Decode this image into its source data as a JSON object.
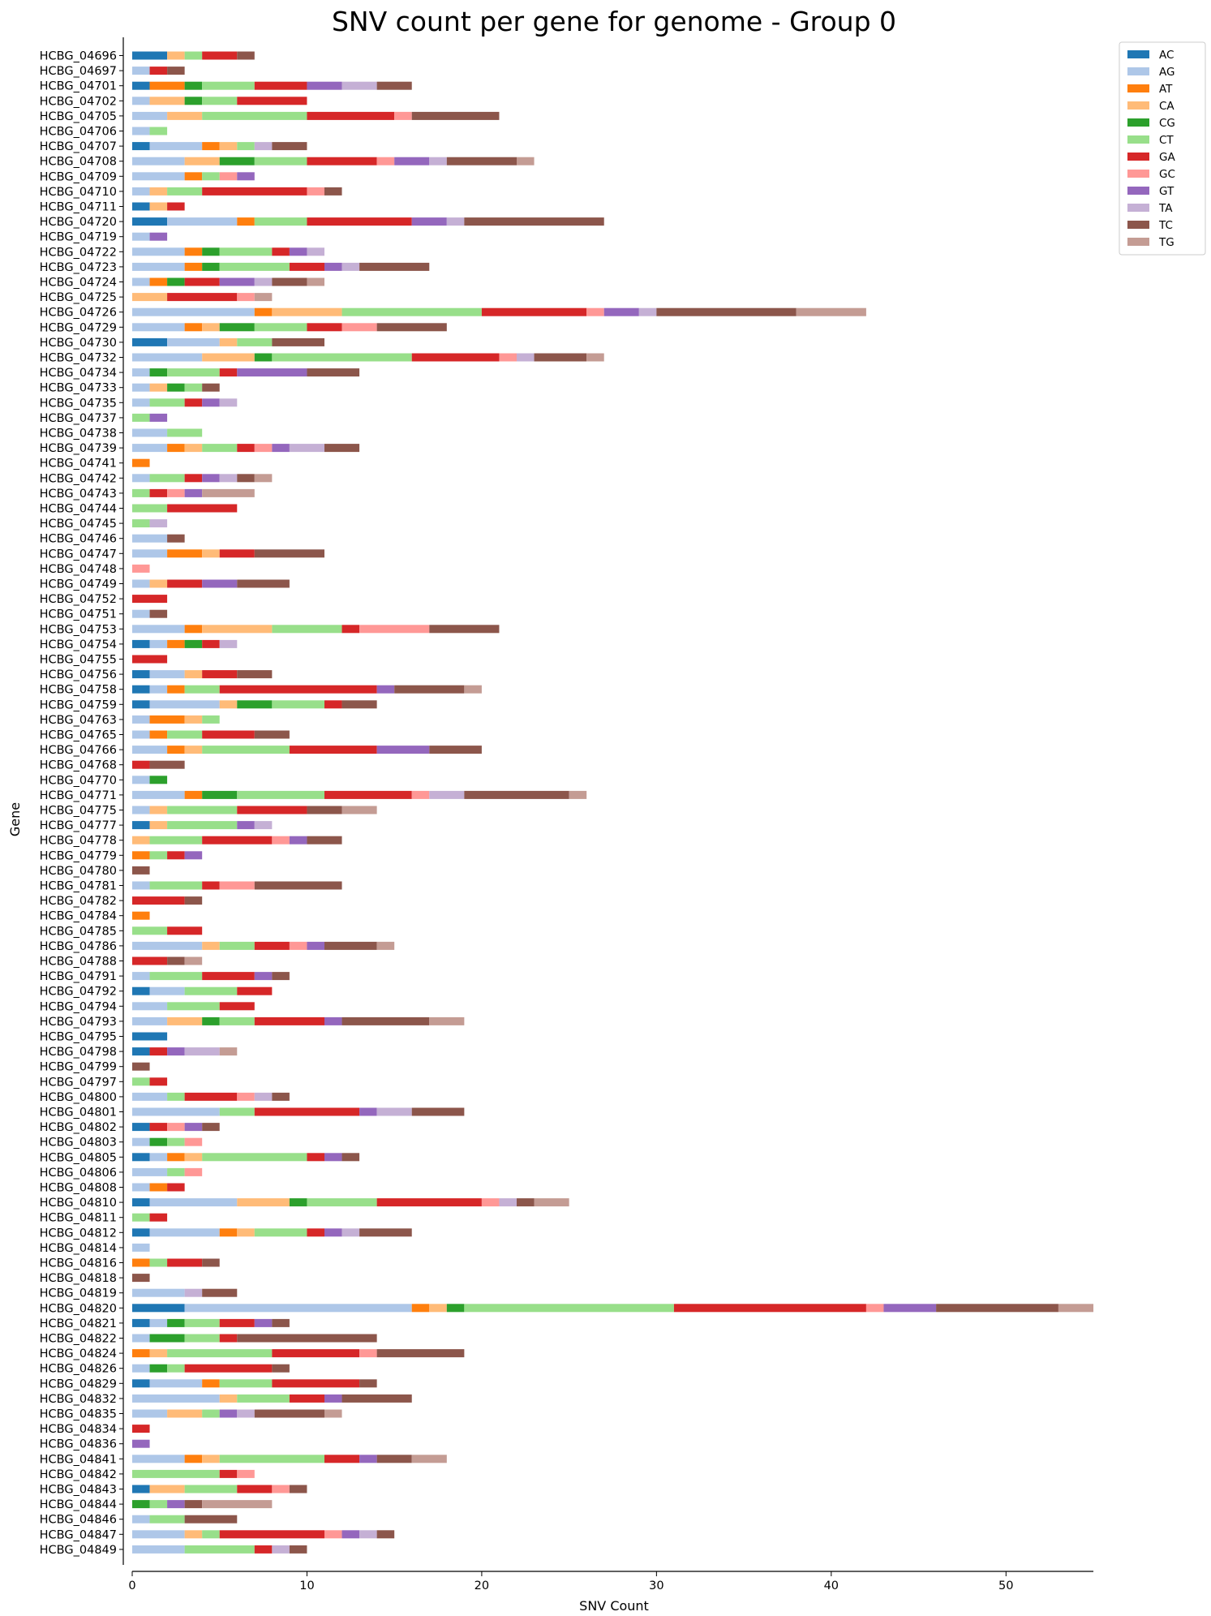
{
  "chart_data": {
    "type": "bar",
    "orientation": "horizontal",
    "stacked": true,
    "title": "SNV count per gene for genome - Group 0",
    "xlabel": "SNV Count",
    "ylabel": "Gene",
    "xlim": [
      0,
      55
    ],
    "xticks": [
      0,
      10,
      20,
      30,
      40,
      50
    ],
    "legend_position": "top-right",
    "categories": [
      "HCBG_04696",
      "HCBG_04697",
      "HCBG_04701",
      "HCBG_04702",
      "HCBG_04705",
      "HCBG_04706",
      "HCBG_04707",
      "HCBG_04708",
      "HCBG_04709",
      "HCBG_04710",
      "HCBG_04711",
      "HCBG_04720",
      "HCBG_04719",
      "HCBG_04722",
      "HCBG_04723",
      "HCBG_04724",
      "HCBG_04725",
      "HCBG_04726",
      "HCBG_04729",
      "HCBG_04730",
      "HCBG_04732",
      "HCBG_04734",
      "HCBG_04733",
      "HCBG_04735",
      "HCBG_04737",
      "HCBG_04738",
      "HCBG_04739",
      "HCBG_04741",
      "HCBG_04742",
      "HCBG_04743",
      "HCBG_04744",
      "HCBG_04745",
      "HCBG_04746",
      "HCBG_04747",
      "HCBG_04748",
      "HCBG_04749",
      "HCBG_04752",
      "HCBG_04751",
      "HCBG_04753",
      "HCBG_04754",
      "HCBG_04755",
      "HCBG_04756",
      "HCBG_04758",
      "HCBG_04759",
      "HCBG_04763",
      "HCBG_04765",
      "HCBG_04766",
      "HCBG_04768",
      "HCBG_04770",
      "HCBG_04771",
      "HCBG_04775",
      "HCBG_04777",
      "HCBG_04778",
      "HCBG_04779",
      "HCBG_04780",
      "HCBG_04781",
      "HCBG_04782",
      "HCBG_04784",
      "HCBG_04785",
      "HCBG_04786",
      "HCBG_04788",
      "HCBG_04791",
      "HCBG_04792",
      "HCBG_04794",
      "HCBG_04793",
      "HCBG_04795",
      "HCBG_04798",
      "HCBG_04799",
      "HCBG_04797",
      "HCBG_04800",
      "HCBG_04801",
      "HCBG_04802",
      "HCBG_04803",
      "HCBG_04805",
      "HCBG_04806",
      "HCBG_04808",
      "HCBG_04810",
      "HCBG_04811",
      "HCBG_04812",
      "HCBG_04814",
      "HCBG_04816",
      "HCBG_04818",
      "HCBG_04819",
      "HCBG_04820",
      "HCBG_04821",
      "HCBG_04822",
      "HCBG_04824",
      "HCBG_04826",
      "HCBG_04829",
      "HCBG_04832",
      "HCBG_04835",
      "HCBG_04834",
      "HCBG_04836",
      "HCBG_04841",
      "HCBG_04842",
      "HCBG_04843",
      "HCBG_04844",
      "HCBG_04846",
      "HCBG_04847",
      "HCBG_04849"
    ],
    "series": [
      {
        "name": "AC",
        "color": "#1f77b4",
        "values": [
          2,
          0,
          1,
          0,
          0,
          0,
          1,
          0,
          0,
          0,
          1,
          2,
          0,
          0,
          0,
          0,
          0,
          0,
          0,
          2,
          0,
          0,
          0,
          0,
          0,
          0,
          0,
          0,
          0,
          0,
          0,
          0,
          0,
          0,
          0,
          0,
          0,
          0,
          0,
          1,
          0,
          1,
          1,
          1,
          0,
          0,
          0,
          0,
          0,
          0,
          0,
          1,
          0,
          0,
          0,
          0,
          0,
          0,
          0,
          0,
          0,
          0,
          1,
          0,
          0,
          2,
          1,
          0,
          0,
          0,
          0,
          1,
          0,
          1,
          0,
          0,
          1,
          0,
          1,
          0,
          0,
          0,
          0,
          3,
          1,
          0,
          0,
          0,
          1,
          0,
          0,
          0,
          0,
          0,
          0,
          1,
          0,
          0,
          0,
          0
        ]
      },
      {
        "name": "AG",
        "color": "#aec7e8",
        "values": [
          0,
          1,
          0,
          1,
          2,
          1,
          3,
          3,
          3,
          1,
          0,
          4,
          1,
          3,
          3,
          1,
          0,
          7,
          3,
          3,
          4,
          1,
          1,
          1,
          0,
          2,
          2,
          0,
          1,
          0,
          0,
          0,
          2,
          2,
          0,
          1,
          0,
          1,
          3,
          1,
          0,
          2,
          1,
          4,
          1,
          1,
          2,
          0,
          1,
          3,
          1,
          0,
          0,
          0,
          0,
          1,
          0,
          0,
          0,
          4,
          0,
          1,
          2,
          2,
          2,
          0,
          0,
          0,
          0,
          2,
          5,
          0,
          1,
          1,
          2,
          1,
          5,
          0,
          4,
          1,
          0,
          0,
          3,
          13,
          1,
          1,
          0,
          1,
          3,
          5,
          2,
          0,
          0,
          3,
          0,
          0,
          0,
          1,
          3,
          3
        ]
      },
      {
        "name": "AT",
        "color": "#ff7f0e",
        "values": [
          0,
          0,
          2,
          0,
          0,
          0,
          1,
          0,
          1,
          0,
          0,
          1,
          0,
          1,
          1,
          1,
          0,
          1,
          1,
          0,
          0,
          0,
          0,
          0,
          0,
          0,
          1,
          1,
          0,
          0,
          0,
          0,
          0,
          2,
          0,
          0,
          0,
          0,
          1,
          1,
          0,
          0,
          1,
          0,
          2,
          1,
          1,
          0,
          0,
          1,
          0,
          0,
          0,
          1,
          0,
          0,
          0,
          1,
          0,
          0,
          0,
          0,
          0,
          0,
          0,
          0,
          0,
          0,
          0,
          0,
          0,
          0,
          0,
          1,
          0,
          1,
          0,
          0,
          1,
          0,
          1,
          0,
          0,
          1,
          0,
          0,
          1,
          0,
          1,
          0,
          0,
          0,
          0,
          1,
          0,
          0,
          0,
          0,
          0,
          0
        ]
      },
      {
        "name": "CA",
        "color": "#ffbb78",
        "values": [
          1,
          0,
          0,
          2,
          2,
          0,
          1,
          2,
          0,
          1,
          1,
          0,
          0,
          0,
          0,
          0,
          2,
          4,
          1,
          1,
          3,
          0,
          1,
          0,
          0,
          0,
          1,
          0,
          0,
          0,
          0,
          0,
          0,
          1,
          0,
          1,
          0,
          0,
          4,
          0,
          0,
          1,
          0,
          1,
          1,
          0,
          1,
          0,
          0,
          0,
          1,
          1,
          1,
          0,
          0,
          0,
          0,
          0,
          0,
          1,
          0,
          0,
          0,
          0,
          2,
          0,
          0,
          0,
          0,
          0,
          0,
          0,
          0,
          1,
          0,
          0,
          3,
          0,
          1,
          0,
          0,
          0,
          0,
          1,
          0,
          0,
          1,
          0,
          0,
          1,
          2,
          0,
          0,
          1,
          0,
          2,
          0,
          0,
          1,
          0
        ]
      },
      {
        "name": "CG",
        "color": "#2ca02c",
        "values": [
          0,
          0,
          1,
          1,
          0,
          0,
          0,
          2,
          0,
          0,
          0,
          0,
          0,
          1,
          1,
          1,
          0,
          0,
          2,
          0,
          1,
          1,
          1,
          0,
          0,
          0,
          0,
          0,
          0,
          0,
          0,
          0,
          0,
          0,
          0,
          0,
          0,
          0,
          0,
          1,
          0,
          0,
          0,
          2,
          0,
          0,
          0,
          0,
          1,
          2,
          0,
          0,
          0,
          0,
          0,
          0,
          0,
          0,
          0,
          0,
          0,
          0,
          0,
          0,
          1,
          0,
          0,
          0,
          0,
          0,
          0,
          0,
          1,
          0,
          0,
          0,
          1,
          0,
          0,
          0,
          0,
          0,
          0,
          1,
          1,
          2,
          0,
          1,
          0,
          0,
          0,
          0,
          0,
          0,
          0,
          0,
          1,
          0,
          0,
          0
        ]
      },
      {
        "name": "CT",
        "color": "#98df8a",
        "values": [
          1,
          0,
          3,
          2,
          6,
          1,
          1,
          3,
          1,
          2,
          0,
          3,
          0,
          3,
          4,
          0,
          0,
          8,
          3,
          2,
          8,
          3,
          1,
          2,
          1,
          2,
          2,
          0,
          2,
          1,
          2,
          1,
          0,
          0,
          0,
          0,
          0,
          0,
          4,
          0,
          0,
          0,
          2,
          3,
          1,
          2,
          5,
          0,
          0,
          5,
          4,
          4,
          3,
          1,
          0,
          3,
          0,
          0,
          2,
          2,
          0,
          3,
          3,
          3,
          2,
          0,
          0,
          0,
          1,
          1,
          2,
          0,
          1,
          6,
          1,
          0,
          4,
          1,
          3,
          0,
          1,
          0,
          0,
          12,
          2,
          2,
          6,
          1,
          3,
          3,
          1,
          0,
          0,
          6,
          5,
          3,
          1,
          2,
          1,
          4
        ]
      },
      {
        "name": "GA",
        "color": "#d62728",
        "values": [
          2,
          1,
          3,
          4,
          5,
          0,
          0,
          4,
          0,
          6,
          1,
          6,
          0,
          1,
          2,
          2,
          4,
          6,
          2,
          0,
          5,
          1,
          0,
          1,
          0,
          0,
          1,
          0,
          1,
          1,
          4,
          0,
          0,
          2,
          0,
          2,
          2,
          0,
          1,
          1,
          2,
          2,
          9,
          1,
          0,
          3,
          5,
          1,
          0,
          5,
          4,
          0,
          4,
          1,
          0,
          1,
          3,
          0,
          2,
          2,
          2,
          3,
          2,
          2,
          4,
          0,
          1,
          0,
          1,
          3,
          6,
          1,
          0,
          1,
          0,
          1,
          6,
          1,
          1,
          0,
          2,
          0,
          0,
          11,
          2,
          1,
          5,
          5,
          5,
          2,
          0,
          1,
          0,
          2,
          1,
          2,
          0,
          0,
          6,
          1
        ]
      },
      {
        "name": "GC",
        "color": "#ff9896",
        "values": [
          0,
          0,
          0,
          0,
          1,
          0,
          0,
          1,
          1,
          1,
          0,
          0,
          0,
          0,
          0,
          0,
          1,
          1,
          2,
          0,
          1,
          0,
          0,
          0,
          0,
          0,
          1,
          0,
          0,
          1,
          0,
          0,
          0,
          0,
          1,
          0,
          0,
          0,
          4,
          0,
          0,
          0,
          0,
          0,
          0,
          0,
          0,
          0,
          0,
          1,
          0,
          0,
          1,
          0,
          0,
          2,
          0,
          0,
          0,
          1,
          0,
          0,
          0,
          0,
          0,
          0,
          0,
          0,
          0,
          1,
          0,
          1,
          1,
          0,
          1,
          0,
          1,
          0,
          0,
          0,
          0,
          0,
          0,
          1,
          0,
          0,
          1,
          0,
          0,
          0,
          0,
          0,
          0,
          0,
          1,
          1,
          0,
          0,
          1,
          0
        ]
      },
      {
        "name": "GT",
        "color": "#9467bd",
        "values": [
          0,
          0,
          2,
          0,
          0,
          0,
          0,
          2,
          1,
          0,
          0,
          2,
          1,
          1,
          1,
          2,
          0,
          2,
          0,
          0,
          0,
          4,
          0,
          1,
          1,
          0,
          1,
          0,
          1,
          1,
          0,
          0,
          0,
          0,
          0,
          2,
          0,
          0,
          0,
          0,
          0,
          0,
          1,
          0,
          0,
          0,
          3,
          0,
          0,
          0,
          0,
          1,
          1,
          1,
          0,
          0,
          0,
          0,
          0,
          1,
          0,
          1,
          0,
          0,
          1,
          0,
          1,
          0,
          0,
          0,
          1,
          1,
          0,
          1,
          0,
          0,
          0,
          0,
          1,
          0,
          0,
          0,
          0,
          3,
          1,
          0,
          0,
          0,
          0,
          1,
          1,
          0,
          1,
          1,
          0,
          0,
          1,
          0,
          1,
          0
        ]
      },
      {
        "name": "TA",
        "color": "#c5b0d5",
        "values": [
          0,
          0,
          2,
          0,
          0,
          0,
          1,
          1,
          0,
          0,
          0,
          1,
          0,
          1,
          1,
          1,
          0,
          1,
          0,
          0,
          1,
          0,
          0,
          1,
          0,
          0,
          2,
          0,
          1,
          0,
          0,
          1,
          0,
          0,
          0,
          0,
          0,
          0,
          0,
          1,
          0,
          0,
          0,
          0,
          0,
          0,
          0,
          0,
          0,
          2,
          0,
          1,
          0,
          0,
          0,
          0,
          0,
          0,
          0,
          0,
          0,
          0,
          0,
          0,
          0,
          0,
          2,
          0,
          0,
          1,
          2,
          0,
          0,
          0,
          0,
          0,
          1,
          0,
          1,
          0,
          0,
          0,
          1,
          0,
          0,
          0,
          0,
          0,
          0,
          0,
          1,
          0,
          0,
          0,
          0,
          0,
          0,
          0,
          1,
          1
        ]
      },
      {
        "name": "TC",
        "color": "#8c564b",
        "values": [
          1,
          1,
          2,
          0,
          5,
          0,
          2,
          4,
          0,
          1,
          0,
          8,
          0,
          0,
          4,
          2,
          0,
          8,
          4,
          3,
          3,
          3,
          1,
          0,
          0,
          0,
          2,
          0,
          1,
          0,
          0,
          0,
          1,
          4,
          0,
          3,
          0,
          1,
          4,
          0,
          0,
          2,
          4,
          2,
          0,
          2,
          3,
          2,
          0,
          6,
          2,
          0,
          2,
          0,
          1,
          5,
          1,
          0,
          0,
          3,
          1,
          1,
          0,
          0,
          5,
          0,
          0,
          1,
          0,
          1,
          3,
          1,
          0,
          1,
          0,
          0,
          1,
          0,
          3,
          0,
          1,
          1,
          2,
          7,
          1,
          8,
          5,
          1,
          1,
          4,
          4,
          0,
          0,
          2,
          0,
          1,
          1,
          3,
          1,
          1
        ]
      },
      {
        "name": "TG",
        "color": "#c49c94",
        "values": [
          0,
          0,
          0,
          0,
          0,
          0,
          0,
          1,
          0,
          0,
          0,
          0,
          0,
          0,
          0,
          1,
          1,
          4,
          0,
          0,
          1,
          0,
          0,
          0,
          0,
          0,
          0,
          0,
          1,
          3,
          0,
          0,
          0,
          0,
          0,
          0,
          0,
          0,
          0,
          0,
          0,
          0,
          1,
          0,
          0,
          0,
          0,
          0,
          0,
          1,
          2,
          0,
          0,
          0,
          0,
          0,
          0,
          0,
          0,
          1,
          1,
          0,
          0,
          0,
          2,
          0,
          1,
          0,
          0,
          0,
          0,
          0,
          0,
          0,
          0,
          0,
          2,
          0,
          0,
          0,
          0,
          0,
          0,
          2,
          0,
          0,
          0,
          0,
          0,
          0,
          1,
          0,
          0,
          2,
          0,
          0,
          4,
          0,
          0,
          0
        ]
      }
    ]
  }
}
